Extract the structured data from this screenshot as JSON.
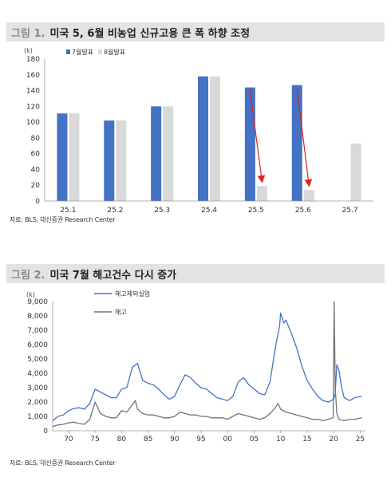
{
  "figure1": {
    "number": "그림 1.",
    "title": "미국 5, 6월 비농업 신규고용 큰 폭 하향 조정",
    "source": "자료: BLS, 대신증권 Research Center"
  },
  "figure2": {
    "number": "그림 2.",
    "title": "미국 7월 해고건수 다시 증가",
    "source": "자료: BLS, 대신증권 Research Center"
  },
  "colors": {
    "blue": "#4472c4",
    "gray": "#d9d9d9",
    "line_gray": "#737373",
    "arrow": "#e02020"
  },
  "chart_data": [
    {
      "type": "bar",
      "unit": "(k)",
      "categories": [
        "25.1",
        "25.2",
        "25.3",
        "25.4",
        "25.5",
        "25.6",
        "25.7"
      ],
      "series": [
        {
          "name": "7월발표",
          "values": [
            111,
            102,
            120,
            158,
            144,
            147,
            null
          ]
        },
        {
          "name": "8월발표",
          "values": [
            111,
            102,
            120,
            158,
            19,
            14,
            73
          ]
        }
      ],
      "ylim": [
        0,
        180
      ],
      "yticks": [
        0,
        20,
        40,
        60,
        80,
        100,
        120,
        140,
        160,
        180
      ],
      "legend": "top-left",
      "annotations": [
        "revision arrow 25.5",
        "revision arrow 25.6"
      ]
    },
    {
      "type": "line",
      "unit": "(k)",
      "xticks": [
        "70",
        "75",
        "80",
        "85",
        "90",
        "95",
        "00",
        "05",
        "10",
        "15",
        "20",
        "25"
      ],
      "ylim": [
        0,
        9000
      ],
      "yticks": [
        0,
        1000,
        2000,
        3000,
        4000,
        5000,
        6000,
        7000,
        8000,
        9000
      ],
      "legend": "top-left",
      "series": [
        {
          "name": "해고제외실업",
          "x": [
            1967,
            1968,
            1969,
            1970,
            1971,
            1972,
            1973,
            1974,
            1975,
            1976,
            1977,
            1978,
            1979,
            1980,
            1981,
            1982,
            1983,
            1984,
            1985,
            1986,
            1987,
            1988,
            1989,
            1990,
            1991,
            1992,
            1993,
            1994,
            1995,
            1996,
            1997,
            1998,
            1999,
            2000,
            2001,
            2002,
            2003,
            2004,
            2005,
            2006,
            2007,
            2008,
            2009,
            2009.8,
            2010,
            2010.6,
            2011,
            2012,
            2013,
            2014,
            2015,
            2016,
            2017,
            2018,
            2019,
            2020,
            2020.3,
            2020.6,
            2021,
            2021.5,
            2022,
            2023,
            2024,
            2025.3
          ],
          "values": [
            700,
            1000,
            1100,
            1400,
            1550,
            1600,
            1500,
            1900,
            2900,
            2700,
            2500,
            2300,
            2300,
            2900,
            3000,
            4400,
            4700,
            3500,
            3300,
            3200,
            2900,
            2500,
            2200,
            2400,
            3200,
            3900,
            3700,
            3300,
            3000,
            2900,
            2600,
            2300,
            2200,
            2100,
            2400,
            3400,
            3700,
            3200,
            2900,
            2600,
            2500,
            3400,
            5800,
            7300,
            8200,
            7500,
            7700,
            6800,
            5800,
            4500,
            3500,
            2900,
            2400,
            2100,
            2000,
            2200,
            2600,
            4600,
            4200,
            3000,
            2300,
            2100,
            2300,
            2400
          ]
        },
        {
          "name": "해고",
          "x": [
            1967,
            1968,
            1969,
            1970,
            1971,
            1972,
            1973,
            1974,
            1974.6,
            1975,
            1976,
            1977,
            1978,
            1979,
            1980,
            1981,
            1982,
            1982.6,
            1983,
            1984,
            1985,
            1986,
            1987,
            1988,
            1989,
            1990,
            1991,
            1992,
            1993,
            1994,
            1995,
            1996,
            1997,
            1998,
            1999,
            2000,
            2001,
            2002,
            2003,
            2004,
            2005,
            2006,
            2007,
            2008,
            2009,
            2009.5,
            2010,
            2011,
            2012,
            2013,
            2014,
            2015,
            2016,
            2017,
            2018,
            2019,
            2019.9,
            2020.1,
            2020.3,
            2020.6,
            2021,
            2022,
            2023,
            2024,
            2025.3
          ],
          "values": [
            300,
            400,
            450,
            550,
            600,
            500,
            450,
            800,
            1500,
            2000,
            1200,
            1000,
            900,
            900,
            1400,
            1300,
            1800,
            2100,
            1500,
            1200,
            1100,
            1100,
            1000,
            900,
            900,
            1000,
            1300,
            1200,
            1100,
            1100,
            1000,
            1000,
            900,
            900,
            900,
            800,
            1000,
            1200,
            1100,
            1000,
            900,
            800,
            900,
            1200,
            1600,
            1900,
            1500,
            1300,
            1200,
            1100,
            1000,
            900,
            800,
            800,
            700,
            800,
            900,
            9000,
            3000,
            1200,
            800,
            700,
            800,
            800,
            900
          ]
        }
      ]
    }
  ]
}
